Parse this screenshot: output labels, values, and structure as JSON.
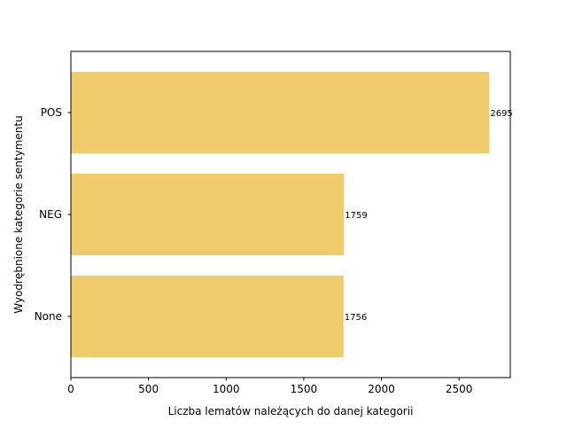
{
  "chart_data": {
    "type": "bar",
    "orientation": "horizontal",
    "title": "",
    "xlabel": "Liczba lematów należących do danej kategorii",
    "ylabel": "Wyodrębnione kategorie sentymentu",
    "categories": [
      "POS",
      "NEG",
      "None"
    ],
    "values": [
      2695,
      1759,
      1756
    ],
    "data_labels": [
      "2695",
      "1759",
      "1756"
    ],
    "xlim": [
      0,
      2830
    ],
    "xticks": [
      0,
      500,
      1000,
      1500,
      2000,
      2500
    ],
    "xtick_labels": [
      "0",
      "500",
      "1000",
      "1500",
      "2000",
      "2500"
    ],
    "grid": false,
    "legend": "none",
    "bar_color": "#f0cb6b",
    "axis_color": "#000000"
  }
}
